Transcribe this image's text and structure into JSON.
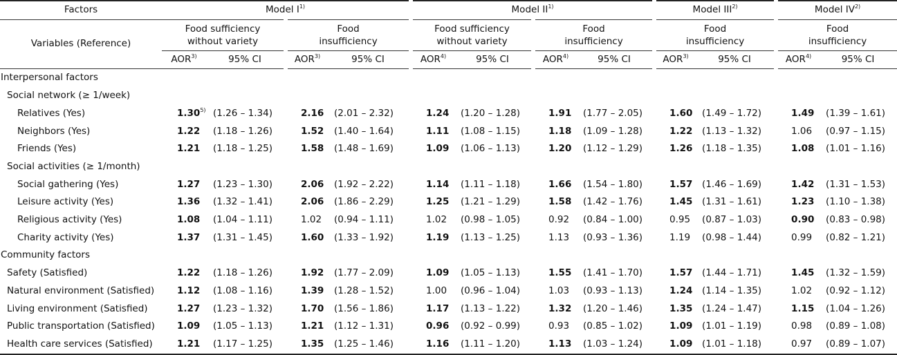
{
  "header": {
    "factors": "Factors",
    "variables": "Variables (Reference)",
    "models": [
      {
        "label": "Model I",
        "sup": "1)"
      },
      {
        "label": "Model II",
        "sup": "1)"
      },
      {
        "label": "Model III",
        "sup": "2)"
      },
      {
        "label": "Model IV",
        "sup": "2)"
      }
    ],
    "groups": [
      {
        "line1": "Food sufficiency",
        "line2": "without variety"
      },
      {
        "line1": "Food",
        "line2": "insufficiency"
      },
      {
        "line1": "Food sufficiency",
        "line2": "without variety"
      },
      {
        "line1": "Food",
        "line2": "insufficiency"
      },
      {
        "line1": "Food",
        "line2": "insufficiency"
      },
      {
        "line1": "Food",
        "line2": "insufficiency"
      }
    ],
    "aor_sups": [
      "3)",
      "3)",
      "4)",
      "4)",
      "3)",
      "4)"
    ],
    "aor": "AOR",
    "ci": "95% CI"
  },
  "rows": [
    {
      "label": "Interpersonal factors",
      "level": 0,
      "section": true
    },
    {
      "label": "Social network (≥ 1/week)",
      "level": 1,
      "section": true
    },
    {
      "label": "Relatives (Yes)",
      "level": 2,
      "cells": [
        {
          "aor": "1.30",
          "sup": "5)",
          "bold": true,
          "ci": "(1.26 – 1.34)"
        },
        {
          "aor": "2.16",
          "bold": true,
          "ci": "(2.01 – 2.32)"
        },
        {
          "aor": "1.24",
          "bold": true,
          "ci": "(1.20 – 1.28)"
        },
        {
          "aor": "1.91",
          "bold": true,
          "ci": "(1.77 – 2.05)"
        },
        {
          "aor": "1.60",
          "bold": true,
          "ci": "(1.49 – 1.72)"
        },
        {
          "aor": "1.49",
          "bold": true,
          "ci": "(1.39 – 1.61)"
        }
      ]
    },
    {
      "label": "Neighbors (Yes)",
      "level": 2,
      "cells": [
        {
          "aor": "1.22",
          "bold": true,
          "ci": "(1.18 – 1.26)"
        },
        {
          "aor": "1.52",
          "bold": true,
          "ci": "(1.40 – 1.64)"
        },
        {
          "aor": "1.11",
          "bold": true,
          "ci": "(1.08 – 1.15)"
        },
        {
          "aor": "1.18",
          "bold": true,
          "ci": "(1.09 – 1.28)"
        },
        {
          "aor": "1.22",
          "bold": true,
          "ci": "(1.13 – 1.32)"
        },
        {
          "aor": "1.06",
          "bold": false,
          "ci": "(0.97 – 1.15)"
        }
      ]
    },
    {
      "label": "Friends (Yes)",
      "level": 2,
      "cells": [
        {
          "aor": "1.21",
          "bold": true,
          "ci": "(1.18 – 1.25)"
        },
        {
          "aor": "1.58",
          "bold": true,
          "ci": "(1.48 – 1.69)"
        },
        {
          "aor": "1.09",
          "bold": true,
          "ci": "(1.06 – 1.13)"
        },
        {
          "aor": "1.20",
          "bold": true,
          "ci": "(1.12 – 1.29)"
        },
        {
          "aor": "1.26",
          "bold": true,
          "ci": "(1.18 – 1.35)"
        },
        {
          "aor": "1.08",
          "bold": true,
          "ci": "(1.01 – 1.16)"
        }
      ]
    },
    {
      "label": "Social activities (≥ 1/month)",
      "level": 1,
      "section": true
    },
    {
      "label": "Social gathering (Yes)",
      "level": 2,
      "cells": [
        {
          "aor": "1.27",
          "bold": true,
          "ci": "(1.23 – 1.30)"
        },
        {
          "aor": "2.06",
          "bold": true,
          "ci": "(1.92 – 2.22)"
        },
        {
          "aor": "1.14",
          "bold": true,
          "ci": "(1.11 – 1.18)"
        },
        {
          "aor": "1.66",
          "bold": true,
          "ci": "(1.54 – 1.80)"
        },
        {
          "aor": "1.57",
          "bold": true,
          "ci": "(1.46 – 1.69)"
        },
        {
          "aor": "1.42",
          "bold": true,
          "ci": "(1.31 – 1.53)"
        }
      ]
    },
    {
      "label": "Leisure activity (Yes)",
      "level": 2,
      "cells": [
        {
          "aor": "1.36",
          "bold": true,
          "ci": "(1.32 – 1.41)"
        },
        {
          "aor": "2.06",
          "bold": true,
          "ci": "(1.86 – 2.29)"
        },
        {
          "aor": "1.25",
          "bold": true,
          "ci": "(1.21 – 1.29)"
        },
        {
          "aor": "1.58",
          "bold": true,
          "ci": "(1.42 – 1.76)"
        },
        {
          "aor": "1.45",
          "bold": true,
          "ci": "(1.31 – 1.61)"
        },
        {
          "aor": "1.23",
          "bold": true,
          "ci": "(1.10 – 1.38)"
        }
      ]
    },
    {
      "label": "Religious activity (Yes)",
      "level": 2,
      "cells": [
        {
          "aor": "1.08",
          "bold": true,
          "ci": "(1.04 – 1.11)"
        },
        {
          "aor": "1.02",
          "bold": false,
          "ci": "(0.94 – 1.11)"
        },
        {
          "aor": "1.02",
          "bold": false,
          "ci": "(0.98 – 1.05)"
        },
        {
          "aor": "0.92",
          "bold": false,
          "ci": "(0.84 – 1.00)"
        },
        {
          "aor": "0.95",
          "bold": false,
          "ci": "(0.87 – 1.03)"
        },
        {
          "aor": "0.90",
          "bold": true,
          "ci": "(0.83 – 0.98)"
        }
      ]
    },
    {
      "label": "Charity activity (Yes)",
      "level": 2,
      "cells": [
        {
          "aor": "1.37",
          "bold": true,
          "ci": "(1.31 – 1.45)"
        },
        {
          "aor": "1.60",
          "bold": true,
          "ci": "(1.33 – 1.92)"
        },
        {
          "aor": "1.19",
          "bold": true,
          "ci": "(1.13 – 1.25)"
        },
        {
          "aor": "1.13",
          "bold": false,
          "ci": "(0.93 – 1.36)"
        },
        {
          "aor": "1.19",
          "bold": false,
          "ci": "(0.98 – 1.44)"
        },
        {
          "aor": "0.99",
          "bold": false,
          "ci": "(0.82 – 1.21)"
        }
      ]
    },
    {
      "label": "Community factors",
      "level": 0,
      "section": true
    },
    {
      "label": "Safety (Satisfied)",
      "level": 1,
      "cells": [
        {
          "aor": "1.22",
          "bold": true,
          "ci": "(1.18 – 1.26)"
        },
        {
          "aor": "1.92",
          "bold": true,
          "ci": "(1.77 – 2.09)"
        },
        {
          "aor": "1.09",
          "bold": true,
          "ci": "(1.05 – 1.13)"
        },
        {
          "aor": "1.55",
          "bold": true,
          "ci": "(1.41 – 1.70)"
        },
        {
          "aor": "1.57",
          "bold": true,
          "ci": "(1.44 – 1.71)"
        },
        {
          "aor": "1.45",
          "bold": true,
          "ci": "(1.32 – 1.59)"
        }
      ]
    },
    {
      "label": "Natural environment (Satisfied)",
      "level": 1,
      "cells": [
        {
          "aor": "1.12",
          "bold": true,
          "ci": "(1.08 – 1.16)"
        },
        {
          "aor": "1.39",
          "bold": true,
          "ci": "(1.28 – 1.52)"
        },
        {
          "aor": "1.00",
          "bold": false,
          "ci": "(0.96 – 1.04)"
        },
        {
          "aor": "1.03",
          "bold": false,
          "ci": "(0.93 – 1.13)"
        },
        {
          "aor": "1.24",
          "bold": true,
          "ci": "(1.14 – 1.35)"
        },
        {
          "aor": "1.02",
          "bold": false,
          "ci": "(0.92 – 1.12)"
        }
      ]
    },
    {
      "label": "Living environment (Satisfied)",
      "level": 1,
      "cells": [
        {
          "aor": "1.27",
          "bold": true,
          "ci": "(1.23 – 1.32)"
        },
        {
          "aor": "1.70",
          "bold": true,
          "ci": "(1.56 – 1.86)"
        },
        {
          "aor": "1.17",
          "bold": true,
          "ci": "(1.13 – 1.22)"
        },
        {
          "aor": "1.32",
          "bold": true,
          "ci": "(1.20 – 1.46)"
        },
        {
          "aor": "1.35",
          "bold": true,
          "ci": "(1.24 – 1.47)"
        },
        {
          "aor": "1.15",
          "bold": true,
          "ci": "(1.04 – 1.26)"
        }
      ]
    },
    {
      "label": "Public transportation (Satisfied)",
      "level": 1,
      "cells": [
        {
          "aor": "1.09",
          "bold": true,
          "ci": "(1.05 – 1.13)"
        },
        {
          "aor": "1.21",
          "bold": true,
          "ci": "(1.12 – 1.31)"
        },
        {
          "aor": "0.96",
          "bold": true,
          "ci": "(0.92 – 0.99)"
        },
        {
          "aor": "0.93",
          "bold": false,
          "ci": "(0.85 – 1.02)"
        },
        {
          "aor": "1.09",
          "bold": true,
          "ci": "(1.01 – 1.19)"
        },
        {
          "aor": "0.98",
          "bold": false,
          "ci": "(0.89 – 1.08)"
        }
      ]
    },
    {
      "label": "Health care services (Satisfied)",
      "level": 1,
      "cells": [
        {
          "aor": "1.21",
          "bold": true,
          "ci": "(1.17 – 1.25)"
        },
        {
          "aor": "1.35",
          "bold": true,
          "ci": "(1.25 – 1.46)"
        },
        {
          "aor": "1.16",
          "bold": true,
          "ci": "(1.11 – 1.20)"
        },
        {
          "aor": "1.13",
          "bold": true,
          "ci": "(1.03 – 1.24)"
        },
        {
          "aor": "1.09",
          "bold": true,
          "ci": "(1.01 – 1.18)"
        },
        {
          "aor": "0.97",
          "bold": false,
          "ci": "(0.89 – 1.07)"
        }
      ]
    }
  ]
}
